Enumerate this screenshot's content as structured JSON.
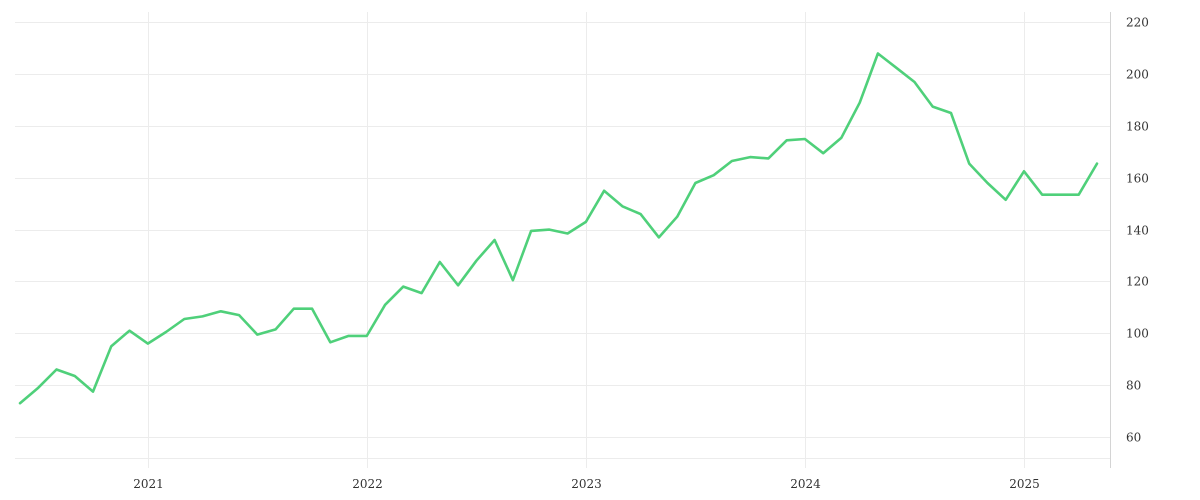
{
  "chart_data": {
    "type": "line",
    "title": "",
    "xlabel": "",
    "ylabel": "",
    "x_ticks": [
      "2021",
      "2022",
      "2023",
      "2024",
      "2025"
    ],
    "y_ticks": [
      60,
      80,
      100,
      120,
      140,
      160,
      180,
      200,
      220
    ],
    "ylim": [
      48,
      224
    ],
    "xlim": [
      "2020-06",
      "2025-06"
    ],
    "y_axis_position": "right",
    "grid": true,
    "legend": "none",
    "color": "#4fd07a",
    "series": [
      {
        "x": [
          "2020-06",
          "2020-07",
          "2020-08",
          "2020-09",
          "2020-10",
          "2020-11",
          "2020-12",
          "2021-01",
          "2021-02",
          "2021-03",
          "2021-04",
          "2021-05",
          "2021-06",
          "2021-07",
          "2021-08",
          "2021-09",
          "2021-10",
          "2021-11",
          "2021-12",
          "2022-01",
          "2022-02",
          "2022-03",
          "2022-04",
          "2022-05",
          "2022-06",
          "2022-07",
          "2022-08",
          "2022-09",
          "2022-10",
          "2022-11",
          "2022-12",
          "2023-01",
          "2023-02",
          "2023-03",
          "2023-04",
          "2023-05",
          "2023-06",
          "2023-07",
          "2023-08",
          "2023-09",
          "2023-10",
          "2023-11",
          "2023-12",
          "2024-01",
          "2024-02",
          "2024-03",
          "2024-04",
          "2024-05",
          "2024-06",
          "2024-07",
          "2024-08",
          "2024-09",
          "2024-10",
          "2024-11",
          "2024-12",
          "2025-01",
          "2025-02",
          "2025-03",
          "2025-04",
          "2025-05"
        ],
        "values": [
          73,
          79,
          86,
          83.5,
          77.5,
          95,
          101,
          96,
          100.5,
          105.5,
          106.5,
          108.5,
          107,
          99.5,
          101.5,
          109.5,
          109.5,
          96.5,
          99,
          99,
          111,
          118,
          115.5,
          127.5,
          118.5,
          128,
          136,
          120.5,
          139.5,
          140,
          138.5,
          143,
          155,
          149,
          146,
          137,
          145,
          158,
          161,
          166.5,
          168,
          167.5,
          174.5,
          175,
          169.5,
          175.5,
          189,
          208,
          202.5,
          197,
          187.5,
          185,
          165.5,
          158,
          151.5,
          162.5,
          153.5,
          153.5,
          153.5,
          165.5
        ]
      }
    ]
  }
}
